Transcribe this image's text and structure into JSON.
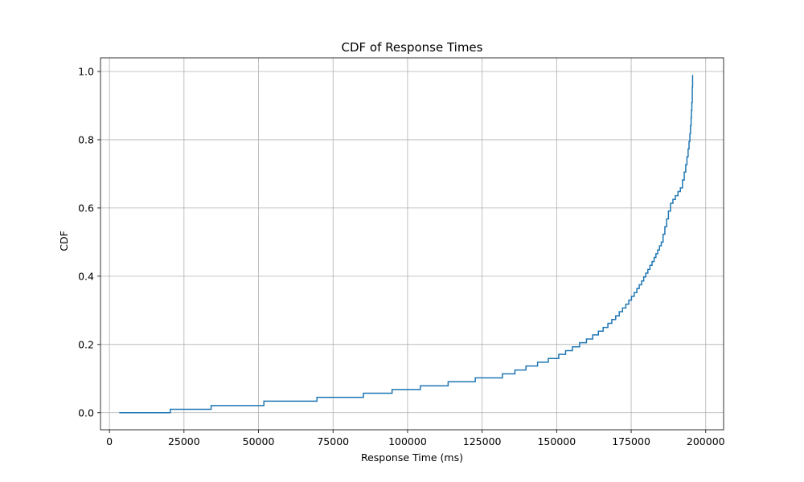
{
  "chart_data": {
    "type": "line",
    "step": true,
    "title": "CDF of Response Times",
    "xlabel": "Response Time (ms)",
    "ylabel": "CDF",
    "xlim": [
      -3000,
      206000
    ],
    "ylim": [
      -0.05,
      1.04
    ],
    "xticks": [
      0,
      25000,
      50000,
      75000,
      100000,
      125000,
      150000,
      175000,
      200000
    ],
    "xtick_labels": [
      "0",
      "25000",
      "50000",
      "75000",
      "100000",
      "125000",
      "150000",
      "175000",
      "200000"
    ],
    "yticks": [
      0.0,
      0.2,
      0.4,
      0.6,
      0.8,
      1.0
    ],
    "ytick_labels": [
      "0.0",
      "0.2",
      "0.4",
      "0.6",
      "0.8",
      "1.0"
    ],
    "grid": true,
    "line_color": "#1f77b4",
    "series": [
      {
        "x": [
          3300,
          20400,
          34100,
          51800,
          69600,
          85200,
          94800,
          104300,
          113600,
          122700,
          131800,
          136000,
          139700,
          143600,
          147200,
          150700,
          153000,
          155300,
          157700,
          160000,
          162100,
          164000,
          165600,
          167200,
          168500,
          169800,
          171000,
          172100,
          173200,
          174200,
          175100,
          176000,
          176900,
          177700,
          178500,
          179200,
          179900,
          180600,
          181300,
          182000,
          182700,
          183300,
          183900,
          184500,
          185100,
          185700,
          186300,
          186900,
          187500,
          188200,
          189000,
          189800,
          190700,
          191500,
          192200,
          192800,
          193300,
          193700,
          194100,
          194400,
          194700,
          194900,
          195100,
          195200,
          195350,
          195500,
          195600
        ],
        "y": [
          0.0,
          0.01,
          0.021,
          0.034,
          0.045,
          0.057,
          0.068,
          0.079,
          0.091,
          0.102,
          0.114,
          0.125,
          0.137,
          0.148,
          0.159,
          0.171,
          0.182,
          0.193,
          0.205,
          0.216,
          0.228,
          0.239,
          0.25,
          0.262,
          0.273,
          0.284,
          0.296,
          0.307,
          0.318,
          0.33,
          0.341,
          0.352,
          0.364,
          0.375,
          0.386,
          0.398,
          0.409,
          0.42,
          0.432,
          0.443,
          0.455,
          0.466,
          0.477,
          0.489,
          0.5,
          0.523,
          0.545,
          0.568,
          0.591,
          0.614,
          0.625,
          0.636,
          0.648,
          0.659,
          0.682,
          0.705,
          0.727,
          0.75,
          0.773,
          0.795,
          0.818,
          0.841,
          0.864,
          0.886,
          0.909,
          0.955,
          0.99
        ]
      }
    ]
  }
}
